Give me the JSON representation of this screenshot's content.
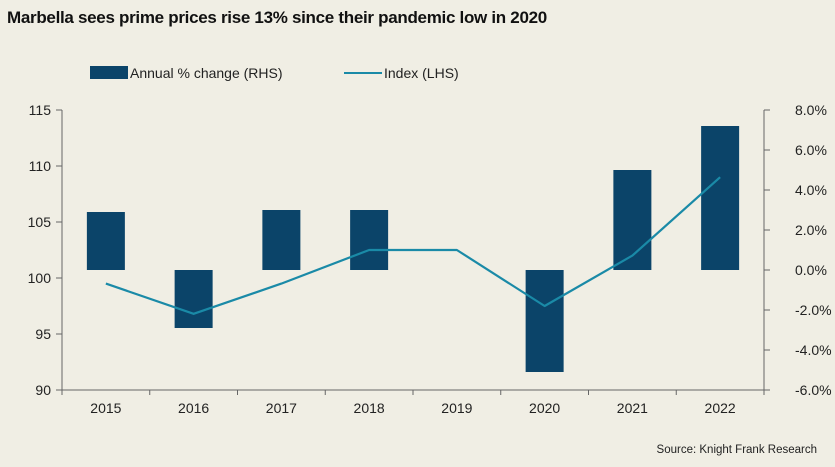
{
  "title": "Marbella sees prime prices rise 13% since their pandemic low in 2020",
  "source": "Source: Knight Frank Research",
  "colors": {
    "bar": "#0b4469",
    "line": "#1a8aa7",
    "axis": "#666666",
    "background": "#f0eee4"
  },
  "chart_data": {
    "type": "bar+line",
    "categories": [
      "2015",
      "2016",
      "2017",
      "2018",
      "2019",
      "2020",
      "2021",
      "2022"
    ],
    "series": [
      {
        "name": "Annual % change (RHS)",
        "type": "bar",
        "axis": "right",
        "values": [
          2.9,
          -2.9,
          3.0,
          3.0,
          null,
          -5.1,
          5.0,
          7.2
        ]
      },
      {
        "name": "Index (LHS)",
        "type": "line",
        "axis": "left",
        "values": [
          99.5,
          96.8,
          99.5,
          102.5,
          102.5,
          97.5,
          102.0,
          109.0
        ]
      }
    ],
    "left_axis": {
      "min": 90,
      "max": 115,
      "ticks": [
        "90",
        "95",
        "100",
        "105",
        "110",
        "115"
      ]
    },
    "right_axis": {
      "min": -6,
      "max": 8,
      "ticks": [
        "-6.0%",
        "-4.0%",
        "-2.0%",
        "0.0%",
        "2.0%",
        "4.0%",
        "6.0%",
        "8.0%"
      ]
    },
    "legend_position": "top",
    "grid": false
  }
}
